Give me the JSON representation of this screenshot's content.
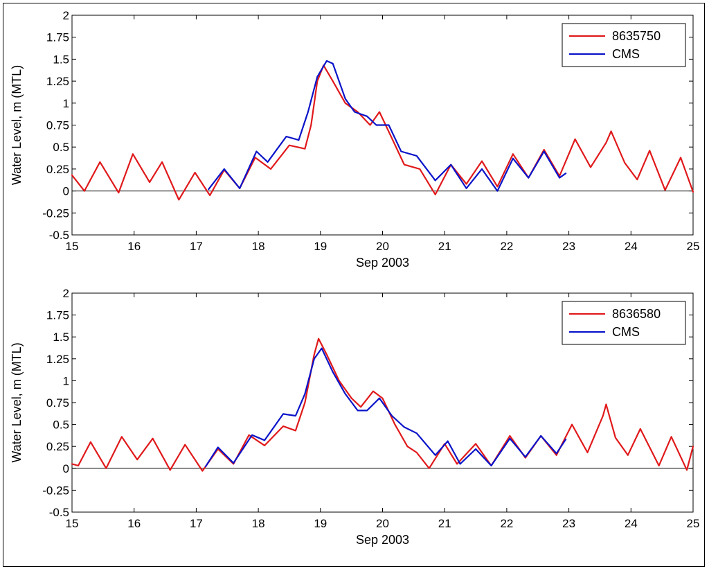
{
  "chart_data": [
    {
      "type": "line",
      "title": "",
      "xlabel": "Sep 2003",
      "ylabel": "Water Level, m (MTL)",
      "xlim": [
        15,
        25
      ],
      "ylim": [
        -0.5,
        2
      ],
      "xticks": [
        15,
        16,
        17,
        18,
        19,
        20,
        21,
        22,
        23,
        24,
        25
      ],
      "xtick_labels": [
        "15",
        "16",
        "17",
        "18",
        "19",
        "20",
        "21",
        "22",
        "23",
        "24",
        "25"
      ],
      "yticks": [
        -0.5,
        -0.25,
        0,
        0.25,
        0.5,
        0.75,
        1,
        1.25,
        1.5,
        1.75,
        2
      ],
      "ytick_labels": [
        "-0.5",
        "-0.25",
        "0",
        "0.25",
        "0.5",
        "0.75",
        "1",
        "1.25",
        "1.5",
        "1.75",
        "2"
      ],
      "zero_line": true,
      "legend_position": "top-right",
      "series": [
        {
          "name": "8635750",
          "color": "#e0191b",
          "points": [
            [
              15,
              0.18
            ],
            [
              15.2,
              0
            ],
            [
              15.45,
              0.33
            ],
            [
              15.75,
              -0.02
            ],
            [
              15.98,
              0.42
            ],
            [
              16.25,
              0.1
            ],
            [
              16.45,
              0.33
            ],
            [
              16.72,
              -0.1
            ],
            [
              16.98,
              0.21
            ],
            [
              17.22,
              -0.05
            ],
            [
              17.45,
              0.24
            ],
            [
              17.7,
              0.03
            ],
            [
              17.95,
              0.38
            ],
            [
              18.2,
              0.25
            ],
            [
              18.5,
              0.52
            ],
            [
              18.75,
              0.48
            ],
            [
              18.85,
              0.75
            ],
            [
              18.95,
              1.25
            ],
            [
              19.05,
              1.43
            ],
            [
              19.2,
              1.25
            ],
            [
              19.4,
              1
            ],
            [
              19.6,
              0.9
            ],
            [
              19.8,
              0.75
            ],
            [
              19.95,
              0.9
            ],
            [
              20.15,
              0.6
            ],
            [
              20.35,
              0.3
            ],
            [
              20.6,
              0.25
            ],
            [
              20.85,
              -0.04
            ],
            [
              21.1,
              0.3
            ],
            [
              21.35,
              0.08
            ],
            [
              21.6,
              0.34
            ],
            [
              21.85,
              0.05
            ],
            [
              22.1,
              0.42
            ],
            [
              22.35,
              0.15
            ],
            [
              22.6,
              0.47
            ],
            [
              22.85,
              0.17
            ],
            [
              23.1,
              0.59
            ],
            [
              23.35,
              0.27
            ],
            [
              23.6,
              0.55
            ],
            [
              23.68,
              0.68
            ],
            [
              23.9,
              0.32
            ],
            [
              24.1,
              0.13
            ],
            [
              24.3,
              0.46
            ],
            [
              24.55,
              0.01
            ],
            [
              24.8,
              0.38
            ],
            [
              25,
              -0.01
            ]
          ]
        },
        {
          "name": "CMS",
          "color": "#0a14c8",
          "points": [
            [
              17.2,
              0.02
            ],
            [
              17.45,
              0.25
            ],
            [
              17.7,
              0.03
            ],
            [
              17.97,
              0.45
            ],
            [
              18.15,
              0.33
            ],
            [
              18.45,
              0.62
            ],
            [
              18.65,
              0.58
            ],
            [
              18.8,
              0.9
            ],
            [
              18.95,
              1.3
            ],
            [
              19.1,
              1.48
            ],
            [
              19.2,
              1.45
            ],
            [
              19.4,
              1.05
            ],
            [
              19.55,
              0.9
            ],
            [
              19.75,
              0.85
            ],
            [
              19.9,
              0.75
            ],
            [
              20.1,
              0.75
            ],
            [
              20.3,
              0.45
            ],
            [
              20.55,
              0.4
            ],
            [
              20.85,
              0.12
            ],
            [
              21.1,
              0.3
            ],
            [
              21.35,
              0.03
            ],
            [
              21.6,
              0.25
            ],
            [
              21.85,
              0
            ],
            [
              22.1,
              0.37
            ],
            [
              22.35,
              0.15
            ],
            [
              22.6,
              0.45
            ],
            [
              22.85,
              0.15
            ],
            [
              22.95,
              0.2
            ]
          ]
        }
      ]
    },
    {
      "type": "line",
      "title": "",
      "xlabel": "Sep 2003",
      "ylabel": "Water Level, m (MTL)",
      "xlim": [
        15,
        25
      ],
      "ylim": [
        -0.5,
        2
      ],
      "xticks": [
        15,
        16,
        17,
        18,
        19,
        20,
        21,
        22,
        23,
        24,
        25
      ],
      "xtick_labels": [
        "15",
        "16",
        "17",
        "18",
        "19",
        "20",
        "21",
        "22",
        "23",
        "24",
        "25"
      ],
      "yticks": [
        -0.5,
        -0.25,
        0,
        0.25,
        0.5,
        0.75,
        1,
        1.25,
        1.5,
        1.75,
        2
      ],
      "ytick_labels": [
        "-0.5",
        "-0.25",
        "0",
        "0.25",
        "0.5",
        "0.75",
        "1",
        "1.25",
        "1.5",
        "1.75",
        "2"
      ],
      "zero_line": true,
      "legend_position": "top-right",
      "series": [
        {
          "name": "8636580",
          "color": "#e0191b",
          "points": [
            [
              15,
              0.05
            ],
            [
              15.1,
              0.03
            ],
            [
              15.3,
              0.3
            ],
            [
              15.55,
              0
            ],
            [
              15.8,
              0.36
            ],
            [
              16.05,
              0.1
            ],
            [
              16.3,
              0.34
            ],
            [
              16.58,
              -0.02
            ],
            [
              16.82,
              0.27
            ],
            [
              17.1,
              -0.03
            ],
            [
              17.35,
              0.22
            ],
            [
              17.6,
              0.05
            ],
            [
              17.85,
              0.38
            ],
            [
              18.1,
              0.26
            ],
            [
              18.4,
              0.48
            ],
            [
              18.6,
              0.43
            ],
            [
              18.75,
              0.75
            ],
            [
              18.9,
              1.3
            ],
            [
              18.97,
              1.48
            ],
            [
              19.1,
              1.3
            ],
            [
              19.3,
              1
            ],
            [
              19.5,
              0.8
            ],
            [
              19.65,
              0.7
            ],
            [
              19.85,
              0.88
            ],
            [
              20.0,
              0.8
            ],
            [
              20.2,
              0.5
            ],
            [
              20.4,
              0.25
            ],
            [
              20.55,
              0.18
            ],
            [
              20.75,
              0
            ],
            [
              21.0,
              0.28
            ],
            [
              21.2,
              0.05
            ],
            [
              21.5,
              0.28
            ],
            [
              21.75,
              0.03
            ],
            [
              22.05,
              0.37
            ],
            [
              22.3,
              0.12
            ],
            [
              22.55,
              0.37
            ],
            [
              22.8,
              0.15
            ],
            [
              23.05,
              0.5
            ],
            [
              23.3,
              0.18
            ],
            [
              23.55,
              0.6
            ],
            [
              23.6,
              0.73
            ],
            [
              23.75,
              0.35
            ],
            [
              23.95,
              0.15
            ],
            [
              24.15,
              0.45
            ],
            [
              24.45,
              0.03
            ],
            [
              24.65,
              0.36
            ],
            [
              24.9,
              -0.02
            ],
            [
              25,
              0.25
            ]
          ]
        },
        {
          "name": "CMS",
          "color": "#0a14c8",
          "points": [
            [
              17.15,
              0.02
            ],
            [
              17.35,
              0.24
            ],
            [
              17.6,
              0.06
            ],
            [
              17.9,
              0.38
            ],
            [
              18.1,
              0.32
            ],
            [
              18.4,
              0.62
            ],
            [
              18.6,
              0.6
            ],
            [
              18.75,
              0.85
            ],
            [
              18.9,
              1.25
            ],
            [
              19.02,
              1.37
            ],
            [
              19.2,
              1.1
            ],
            [
              19.4,
              0.85
            ],
            [
              19.6,
              0.66
            ],
            [
              19.75,
              0.66
            ],
            [
              19.95,
              0.8
            ],
            [
              20.15,
              0.6
            ],
            [
              20.35,
              0.47
            ],
            [
              20.55,
              0.4
            ],
            [
              20.85,
              0.15
            ],
            [
              21.05,
              0.31
            ],
            [
              21.25,
              0.05
            ],
            [
              21.5,
              0.22
            ],
            [
              21.75,
              0.03
            ],
            [
              22.05,
              0.34
            ],
            [
              22.3,
              0.13
            ],
            [
              22.55,
              0.37
            ],
            [
              22.8,
              0.17
            ],
            [
              22.95,
              0.33
            ]
          ]
        }
      ]
    }
  ]
}
